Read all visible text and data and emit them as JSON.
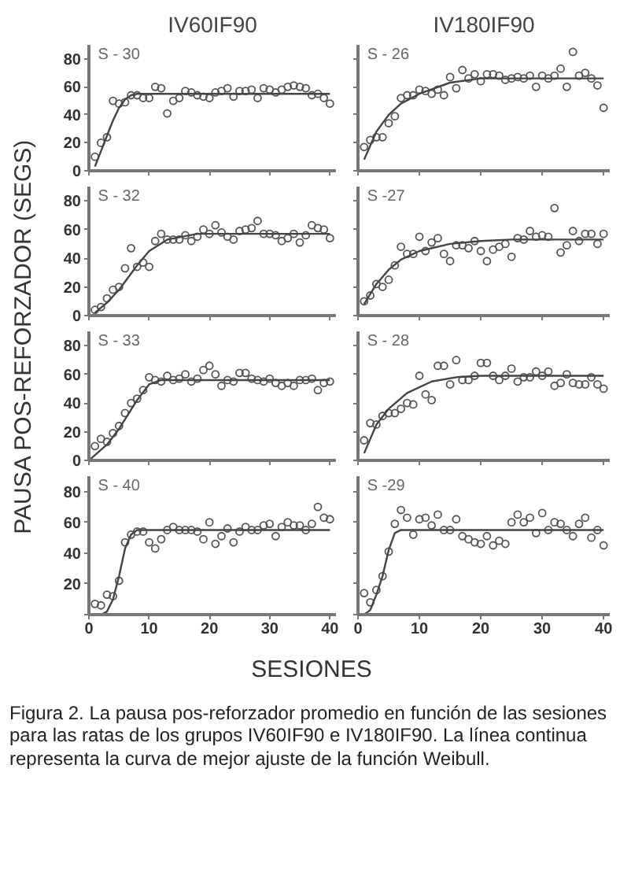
{
  "chart_data": [
    {
      "type": "scatter",
      "title": "IV60IF90",
      "ylabel": "PAUSA POS-REFORZADOR (SEGS)",
      "annotations": [
        "S - 30"
      ],
      "xlim": [
        0,
        41
      ],
      "ylim": [
        0,
        90
      ],
      "xticks": [
        0,
        10,
        20,
        30,
        40
      ],
      "yticks": [
        0,
        20,
        40,
        60,
        80
      ],
      "tick_labels": "y",
      "x": [
        1,
        2,
        3,
        4,
        5,
        6,
        7,
        8,
        9,
        10,
        11,
        12,
        13,
        14,
        15,
        16,
        17,
        18,
        19,
        20,
        21,
        22,
        23,
        24,
        25,
        26,
        27,
        28,
        29,
        30,
        31,
        32,
        33,
        34,
        35,
        36,
        37,
        38,
        39,
        40
      ],
      "series": [
        {
          "marker": "circle",
          "color": "#555555",
          "values": [
            10,
            20,
            24,
            50,
            48,
            49,
            54,
            54,
            52,
            52,
            60,
            59,
            41,
            50,
            52,
            57,
            56,
            54,
            53,
            52,
            56,
            57,
            59,
            53,
            57,
            57,
            58,
            52,
            59,
            58,
            56,
            58,
            60,
            61,
            60,
            59,
            54,
            55,
            52,
            48
          ]
        },
        {
          "type": "line",
          "color": "#444444",
          "x": [
            1,
            2,
            3,
            4,
            5,
            6,
            7,
            8,
            10,
            20,
            30,
            40
          ],
          "values": [
            3,
            14,
            25,
            36,
            45,
            51,
            54,
            55,
            55,
            55,
            55,
            55
          ]
        }
      ]
    },
    {
      "type": "scatter",
      "title": "IV180IF90",
      "annotations": [
        "S - 26"
      ],
      "xlim": [
        0,
        41
      ],
      "ylim": [
        0,
        90
      ],
      "xticks": [
        0,
        10,
        20,
        30,
        40
      ],
      "yticks": [
        0,
        20,
        40,
        60,
        80
      ],
      "tick_labels": false,
      "x": [
        1,
        2,
        3,
        4,
        5,
        6,
        7,
        8,
        9,
        10,
        11,
        12,
        13,
        14,
        15,
        16,
        17,
        18,
        19,
        20,
        21,
        22,
        23,
        24,
        25,
        26,
        27,
        28,
        29,
        30,
        31,
        32,
        33,
        34,
        35,
        36,
        37,
        38,
        39,
        40
      ],
      "series": [
        {
          "marker": "circle",
          "color": "#555555",
          "values": [
            17,
            22,
            24,
            24,
            34,
            39,
            52,
            54,
            54,
            58,
            57,
            55,
            58,
            54,
            67,
            59,
            72,
            66,
            69,
            64,
            69,
            69,
            68,
            65,
            66,
            67,
            66,
            68,
            60,
            68,
            66,
            68,
            73,
            60,
            85,
            68,
            70,
            66,
            61,
            45
          ]
        },
        {
          "type": "line",
          "color": "#444444",
          "x": [
            1,
            3,
            5,
            7,
            10,
            15,
            20,
            25,
            30,
            40
          ],
          "values": [
            8,
            28,
            40,
            48,
            55,
            63,
            66,
            66,
            66,
            66
          ]
        }
      ]
    },
    {
      "type": "scatter",
      "annotations": [
        "S - 32"
      ],
      "xlim": [
        0,
        41
      ],
      "ylim": [
        0,
        90
      ],
      "xticks": [
        0,
        10,
        20,
        30,
        40
      ],
      "yticks": [
        0,
        20,
        40,
        60,
        80
      ],
      "tick_labels": "y",
      "x": [
        1,
        2,
        3,
        4,
        5,
        6,
        7,
        8,
        9,
        10,
        11,
        12,
        13,
        14,
        15,
        16,
        17,
        18,
        19,
        20,
        21,
        22,
        23,
        24,
        25,
        26,
        27,
        28,
        29,
        30,
        31,
        32,
        33,
        34,
        35,
        36,
        37,
        38,
        39,
        40
      ],
      "series": [
        {
          "marker": "circle",
          "color": "#555555",
          "values": [
            4,
            6,
            12,
            18,
            20,
            33,
            47,
            34,
            37,
            34,
            52,
            57,
            53,
            53,
            53,
            56,
            52,
            55,
            60,
            57,
            63,
            58,
            55,
            53,
            59,
            60,
            61,
            66,
            57,
            57,
            56,
            52,
            54,
            57,
            51,
            56,
            63,
            61,
            60,
            54
          ]
        },
        {
          "type": "line",
          "color": "#444444",
          "x": [
            1,
            3,
            5,
            8,
            10,
            13,
            18,
            25,
            40
          ],
          "values": [
            2,
            9,
            18,
            35,
            45,
            53,
            57,
            57,
            57
          ]
        }
      ]
    },
    {
      "type": "scatter",
      "annotations": [
        "S -27"
      ],
      "xlim": [
        0,
        41
      ],
      "ylim": [
        0,
        90
      ],
      "xticks": [
        0,
        10,
        20,
        30,
        40
      ],
      "yticks": [
        0,
        20,
        40,
        60,
        80
      ],
      "tick_labels": false,
      "x": [
        1,
        2,
        3,
        4,
        5,
        6,
        7,
        8,
        9,
        10,
        11,
        12,
        13,
        14,
        15,
        16,
        17,
        18,
        19,
        20,
        21,
        22,
        23,
        24,
        25,
        26,
        27,
        28,
        29,
        30,
        31,
        32,
        33,
        34,
        35,
        36,
        37,
        38,
        39,
        40
      ],
      "series": [
        {
          "marker": "circle",
          "color": "#555555",
          "values": [
            10,
            14,
            22,
            20,
            25,
            35,
            48,
            43,
            43,
            55,
            45,
            51,
            54,
            43,
            38,
            49,
            49,
            47,
            52,
            45,
            38,
            46,
            48,
            50,
            41,
            54,
            53,
            59,
            55,
            56,
            55,
            75,
            44,
            49,
            59,
            52,
            57,
            57,
            50,
            57
          ]
        },
        {
          "type": "line",
          "color": "#444444",
          "x": [
            1,
            3,
            5,
            7,
            10,
            15,
            20,
            25,
            40
          ],
          "values": [
            8,
            22,
            32,
            39,
            45,
            50,
            52,
            53,
            53
          ]
        }
      ]
    },
    {
      "type": "scatter",
      "annotations": [
        "S - 33"
      ],
      "xlim": [
        0,
        41
      ],
      "ylim": [
        0,
        90
      ],
      "xticks": [
        0,
        10,
        20,
        30,
        40
      ],
      "yticks": [
        0,
        20,
        40,
        60,
        80
      ],
      "tick_labels": "y",
      "x": [
        1,
        2,
        3,
        4,
        5,
        6,
        7,
        8,
        9,
        10,
        11,
        12,
        13,
        14,
        15,
        16,
        17,
        18,
        19,
        20,
        21,
        22,
        23,
        24,
        25,
        26,
        27,
        28,
        29,
        30,
        31,
        32,
        33,
        34,
        35,
        36,
        37,
        38,
        39,
        40
      ],
      "series": [
        {
          "marker": "circle",
          "color": "#555555",
          "values": [
            10,
            15,
            13,
            19,
            24,
            33,
            40,
            43,
            49,
            58,
            56,
            55,
            59,
            56,
            57,
            60,
            55,
            57,
            63,
            66,
            60,
            52,
            56,
            55,
            61,
            61,
            57,
            56,
            55,
            57,
            54,
            52,
            54,
            52,
            56,
            56,
            57,
            49,
            54,
            55
          ]
        },
        {
          "type": "line",
          "color": "#444444",
          "x": [
            0,
            3,
            5,
            8,
            10,
            12,
            15,
            25,
            40
          ],
          "values": [
            0,
            11,
            22,
            42,
            53,
            56,
            56,
            56,
            56
          ]
        }
      ]
    },
    {
      "type": "scatter",
      "annotations": [
        "S - 28"
      ],
      "xlim": [
        0,
        41
      ],
      "ylim": [
        0,
        90
      ],
      "xticks": [
        0,
        10,
        20,
        30,
        40
      ],
      "yticks": [
        0,
        20,
        40,
        60,
        80
      ],
      "tick_labels": false,
      "x": [
        1,
        2,
        3,
        4,
        5,
        6,
        7,
        8,
        9,
        10,
        11,
        12,
        13,
        14,
        15,
        16,
        17,
        18,
        19,
        20,
        21,
        22,
        23,
        24,
        25,
        26,
        27,
        28,
        29,
        30,
        31,
        32,
        33,
        34,
        35,
        36,
        37,
        38,
        39,
        40
      ],
      "series": [
        {
          "marker": "circle",
          "color": "#555555",
          "values": [
            14,
            26,
            25,
            31,
            33,
            33,
            36,
            40,
            39,
            59,
            46,
            42,
            66,
            66,
            53,
            70,
            56,
            56,
            59,
            68,
            68,
            59,
            56,
            59,
            64,
            55,
            58,
            58,
            62,
            59,
            62,
            52,
            54,
            60,
            54,
            53,
            53,
            58,
            53,
            50
          ]
        },
        {
          "type": "line",
          "color": "#444444",
          "x": [
            1,
            3,
            5,
            8,
            12,
            16,
            20,
            40
          ],
          "values": [
            5,
            25,
            36,
            47,
            55,
            58,
            59,
            59
          ]
        }
      ]
    },
    {
      "type": "scatter",
      "xlabel": "SESIONES",
      "annotations": [
        "S - 40"
      ],
      "xlim": [
        0,
        41
      ],
      "ylim": [
        0,
        90
      ],
      "xticks": [
        0,
        10,
        20,
        30,
        40
      ],
      "yticks": [
        {
          "value": 0,
          "label": null
        },
        20,
        40,
        60,
        80
      ],
      "x": [
        1,
        2,
        3,
        4,
        5,
        6,
        7,
        8,
        9,
        10,
        11,
        12,
        13,
        14,
        15,
        16,
        17,
        18,
        19,
        20,
        21,
        22,
        23,
        24,
        25,
        26,
        27,
        28,
        29,
        30,
        31,
        32,
        33,
        34,
        35,
        36,
        37,
        38,
        39,
        40
      ],
      "series": [
        {
          "marker": "circle",
          "color": "#555555",
          "values": [
            7,
            6,
            13,
            12,
            22,
            47,
            52,
            54,
            54,
            47,
            43,
            49,
            55,
            57,
            55,
            55,
            55,
            54,
            49,
            60,
            46,
            51,
            56,
            47,
            54,
            57,
            55,
            55,
            58,
            59,
            51,
            57,
            60,
            58,
            58,
            55,
            59,
            70,
            63,
            62
          ]
        },
        {
          "type": "line",
          "color": "#444444",
          "x": [
            2,
            3,
            4,
            5,
            6,
            7,
            8,
            10,
            20,
            30,
            40
          ],
          "values": [
            0,
            2,
            10,
            25,
            43,
            52,
            55,
            55,
            55,
            55,
            55
          ]
        }
      ]
    },
    {
      "type": "scatter",
      "annotations": [
        "S -29",
        "Figura 2.  La pausa pos-reforzador promedio en función de las sesiones para las ratas de los grupos IV60IF90 e IV180IF90. La línea continua representa la curva de mejor ajuste de la función Weibull."
      ],
      "xlim": [
        0,
        41
      ],
      "ylim": [
        0,
        90
      ],
      "xticks": [
        0,
        10,
        20,
        30,
        40
      ],
      "yticks": [
        0,
        20,
        40,
        60,
        80
      ],
      "tick_labels": "x",
      "x": [
        1,
        2,
        3,
        4,
        5,
        6,
        7,
        8,
        9,
        10,
        11,
        12,
        13,
        14,
        15,
        16,
        17,
        18,
        19,
        20,
        21,
        22,
        23,
        24,
        25,
        26,
        27,
        28,
        29,
        30,
        31,
        32,
        33,
        34,
        35,
        36,
        37,
        38,
        39,
        40
      ],
      "series": [
        {
          "marker": "circle",
          "color": "#555555",
          "values": [
            14,
            8,
            16,
            25,
            41,
            59,
            68,
            63,
            52,
            62,
            63,
            58,
            65,
            55,
            55,
            62,
            51,
            49,
            47,
            46,
            51,
            45,
            48,
            46,
            60,
            65,
            60,
            63,
            53,
            66,
            55,
            60,
            59,
            55,
            51,
            59,
            63,
            50,
            55,
            45
          ]
        },
        {
          "type": "line",
          "color": "#444444",
          "x": [
            1,
            2,
            3,
            4,
            5,
            6,
            7,
            10,
            20,
            30,
            40
          ],
          "values": [
            0,
            3,
            13,
            25,
            42,
            53,
            55,
            55,
            55,
            55,
            55
          ]
        }
      ]
    }
  ]
}
